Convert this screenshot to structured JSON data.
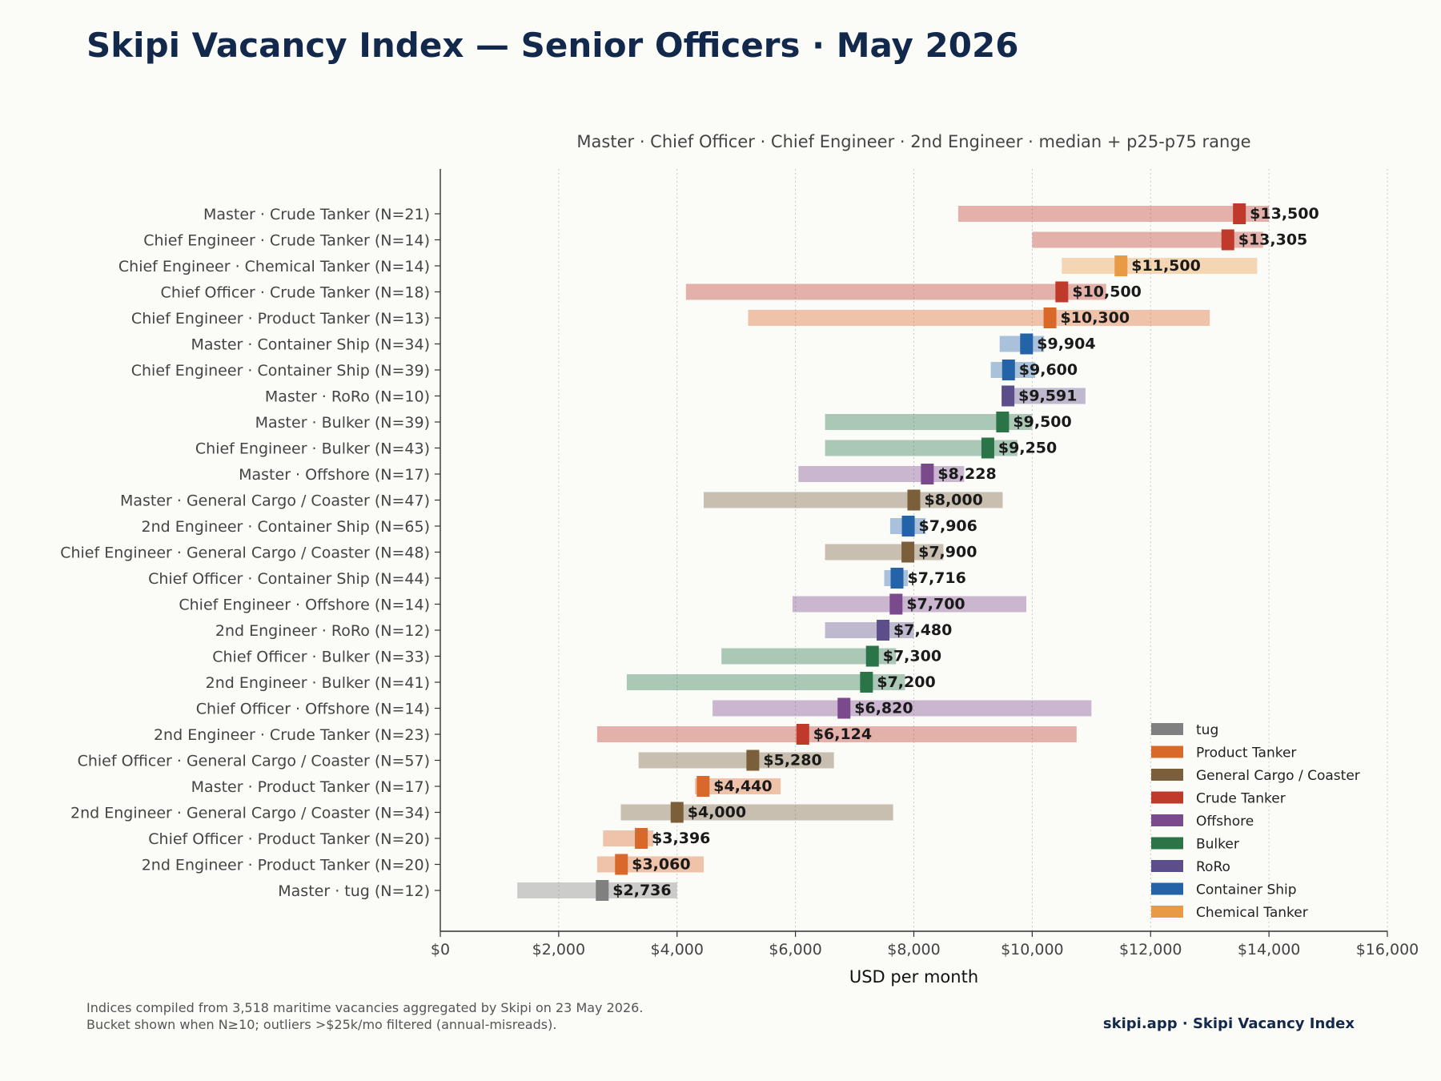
{
  "title": "Skipi Vacancy Index — Senior Officers · May 2026",
  "footnote": {
    "line1": "Indices compiled from 3,518 maritime vacancies aggregated by Skipi on 23 May 2026.",
    "line2": "Bucket shown when N≥10; outliers >$25k/mo filtered (annual-misreads)."
  },
  "brand": "skipi.app · Skipi Vacancy Index",
  "chart_data": {
    "type": "bar",
    "subtitle": "Master · Chief Officer · Chief Engineer · 2nd Engineer  ·  median + p25-p75 range",
    "xlabel": "USD per month",
    "xlim": [
      0,
      16000
    ],
    "xticks": [
      "$0",
      "$2,000",
      "$4,000",
      "$6,000",
      "$8,000",
      "$10,000",
      "$12,000",
      "$14,000",
      "$16,000"
    ],
    "grid": "vertical dotted",
    "legend_position": "bottom-right",
    "colors": {
      "tug": "#808080",
      "Product Tanker": "#d9692b",
      "General Cargo / Coaster": "#7a5f3a",
      "Crude Tanker": "#bf3a2b",
      "Offshore": "#7b4a8c",
      "Bulker": "#2a7448",
      "RoRo": "#5c4e8a",
      "Container Ship": "#2563a8",
      "Chemical Tanker": "#e99a45"
    },
    "legend": [
      "tug",
      "Product Tanker",
      "General Cargo / Coaster",
      "Crude Tanker",
      "Offshore",
      "Bulker",
      "RoRo",
      "Container Ship",
      "Chemical Tanker"
    ],
    "rows": [
      {
        "label": "Master · Crude Tanker  (N=21)",
        "type": "Crude Tanker",
        "p25": 8750,
        "p75": 14000,
        "median": 13500,
        "median_label": "$13,500"
      },
      {
        "label": "Chief Engineer · Crude Tanker  (N=14)",
        "type": "Crude Tanker",
        "p25": 10000,
        "p75": 13900,
        "median": 13305,
        "median_label": "$13,305"
      },
      {
        "label": "Chief Engineer · Chemical Tanker  (N=14)",
        "type": "Chemical Tanker",
        "p25": 10500,
        "p75": 13800,
        "median": 11500,
        "median_label": "$11,500"
      },
      {
        "label": "Chief Officer · Crude Tanker  (N=18)",
        "type": "Crude Tanker",
        "p25": 4150,
        "p75": 11250,
        "median": 10500,
        "median_label": "$10,500"
      },
      {
        "label": "Chief Engineer · Product Tanker  (N=13)",
        "type": "Product Tanker",
        "p25": 5200,
        "p75": 13000,
        "median": 10300,
        "median_label": "$10,300"
      },
      {
        "label": "Master · Container Ship  (N=34)",
        "type": "Container Ship",
        "p25": 9450,
        "p75": 10200,
        "median": 9904,
        "median_label": "$9,904"
      },
      {
        "label": "Chief Engineer · Container Ship  (N=39)",
        "type": "Container Ship",
        "p25": 9300,
        "p75": 10050,
        "median": 9600,
        "median_label": "$9,600"
      },
      {
        "label": "Master · RoRo  (N=10)",
        "type": "RoRo",
        "p25": 9550,
        "p75": 10900,
        "median": 9591,
        "median_label": "$9,591"
      },
      {
        "label": "Master · Bulker  (N=39)",
        "type": "Bulker",
        "p25": 6500,
        "p75": 10000,
        "median": 9500,
        "median_label": "$9,500"
      },
      {
        "label": "Chief Engineer · Bulker  (N=43)",
        "type": "Bulker",
        "p25": 6500,
        "p75": 9750,
        "median": 9250,
        "median_label": "$9,250"
      },
      {
        "label": "Master · Offshore  (N=17)",
        "type": "Offshore",
        "p25": 6050,
        "p75": 8850,
        "median": 8228,
        "median_label": "$8,228"
      },
      {
        "label": "Master · General Cargo / Coaster  (N=47)",
        "type": "General Cargo / Coaster",
        "p25": 4450,
        "p75": 9500,
        "median": 8000,
        "median_label": "$8,000"
      },
      {
        "label": "2nd Engineer · Container Ship  (N=65)",
        "type": "Container Ship",
        "p25": 7600,
        "p75": 8200,
        "median": 7906,
        "median_label": "$7,906"
      },
      {
        "label": "Chief Engineer · General Cargo / Coaster  (N=48)",
        "type": "General Cargo / Coaster",
        "p25": 6500,
        "p75": 8500,
        "median": 7900,
        "median_label": "$7,900"
      },
      {
        "label": "Chief Officer · Container Ship  (N=44)",
        "type": "Container Ship",
        "p25": 7500,
        "p75": 7900,
        "median": 7716,
        "median_label": "$7,716"
      },
      {
        "label": "Chief Engineer · Offshore  (N=14)",
        "type": "Offshore",
        "p25": 5950,
        "p75": 9900,
        "median": 7700,
        "median_label": "$7,700"
      },
      {
        "label": "2nd Engineer · RoRo  (N=12)",
        "type": "RoRo",
        "p25": 6500,
        "p75": 8000,
        "median": 7480,
        "median_label": "$7,480"
      },
      {
        "label": "Chief Officer · Bulker  (N=33)",
        "type": "Bulker",
        "p25": 4750,
        "p75": 7700,
        "median": 7300,
        "median_label": "$7,300"
      },
      {
        "label": "2nd Engineer · Bulker  (N=41)",
        "type": "Bulker",
        "p25": 3150,
        "p75": 7850,
        "median": 7200,
        "median_label": "$7,200"
      },
      {
        "label": "Chief Officer · Offshore  (N=14)",
        "type": "Offshore",
        "p25": 4600,
        "p75": 11000,
        "median": 6820,
        "median_label": "$6,820"
      },
      {
        "label": "2nd Engineer · Crude Tanker  (N=23)",
        "type": "Crude Tanker",
        "p25": 2650,
        "p75": 10750,
        "median": 6124,
        "median_label": "$6,124"
      },
      {
        "label": "Chief Officer · General Cargo / Coaster  (N=57)",
        "type": "General Cargo / Coaster",
        "p25": 3350,
        "p75": 6650,
        "median": 5280,
        "median_label": "$5,280"
      },
      {
        "label": "Master · Product Tanker  (N=17)",
        "type": "Product Tanker",
        "p25": 4300,
        "p75": 5750,
        "median": 4440,
        "median_label": "$4,440"
      },
      {
        "label": "2nd Engineer · General Cargo / Coaster  (N=34)",
        "type": "General Cargo / Coaster",
        "p25": 3050,
        "p75": 7650,
        "median": 4000,
        "median_label": "$4,000"
      },
      {
        "label": "Chief Officer · Product Tanker  (N=20)",
        "type": "Product Tanker",
        "p25": 2750,
        "p75": 3600,
        "median": 3396,
        "median_label": "$3,396"
      },
      {
        "label": "2nd Engineer · Product Tanker  (N=20)",
        "type": "Product Tanker",
        "p25": 2650,
        "p75": 4450,
        "median": 3060,
        "median_label": "$3,060"
      },
      {
        "label": "Master · tug  (N=12)",
        "type": "tug",
        "p25": 1300,
        "p75": 4000,
        "median": 2736,
        "median_label": "$2,736"
      }
    ]
  }
}
